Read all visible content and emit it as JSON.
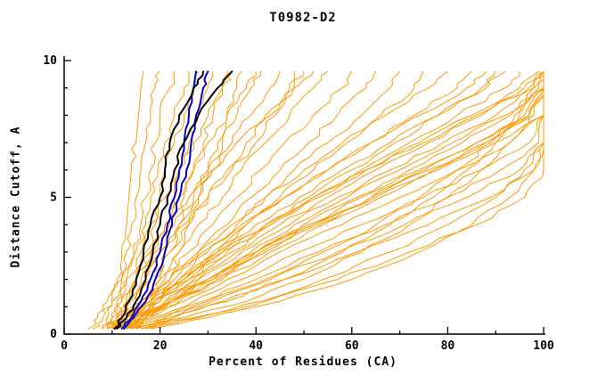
{
  "chart_data": {
    "type": "line",
    "title": "T0982-D2",
    "xlabel": "Percent of Residues (CA)",
    "ylabel": "Distance Cutoff, A",
    "xlim": [
      0,
      100
    ],
    "ylim": [
      0,
      10
    ],
    "x_ticks": [
      0,
      20,
      40,
      60,
      80,
      100
    ],
    "x_minor_step": 10,
    "y_ticks": [
      0,
      5,
      10
    ],
    "y_minor_step": 1,
    "grid": false,
    "legend": "none",
    "colors": {
      "orange": "#ff9900",
      "black": "#000000",
      "blue": "#0000cc"
    },
    "y_levels": [
      0.2,
      0.6,
      1.2,
      2,
      3,
      4,
      5,
      6,
      7,
      8,
      9,
      9.6
    ],
    "series_groups": [
      {
        "name": "model-curves",
        "color_key": "orange",
        "width": 1,
        "curves": [
          [
            8,
            9,
            10,
            11,
            12,
            13,
            13.5,
            14,
            15,
            15.5,
            16,
            16.5
          ],
          [
            9,
            10,
            11,
            12,
            13,
            14,
            15,
            16,
            17,
            18,
            19,
            20
          ],
          [
            10,
            11,
            12,
            13,
            14.5,
            16,
            17,
            18,
            19,
            20,
            22,
            23
          ],
          [
            11,
            12,
            13.5,
            15,
            16,
            17,
            18,
            19.5,
            21,
            23,
            25,
            26
          ],
          [
            12,
            13,
            15,
            17,
            18,
            19,
            20,
            21,
            23,
            25,
            27,
            28
          ],
          [
            13,
            15,
            17,
            19,
            21,
            22,
            23,
            24,
            26,
            28,
            30,
            31
          ],
          [
            14,
            16,
            18,
            20,
            22,
            24,
            25,
            27,
            29,
            31,
            33,
            34
          ],
          [
            15,
            17,
            20,
            22,
            24,
            26,
            28,
            30,
            32,
            34,
            36,
            37
          ],
          [
            9,
            11,
            13,
            15,
            18,
            21,
            24,
            27,
            30,
            34,
            38,
            40
          ],
          [
            10,
            12,
            14,
            17,
            20,
            24,
            28,
            31,
            35,
            39,
            43,
            45
          ],
          [
            10,
            12,
            15,
            18,
            22,
            26,
            30,
            34,
            38,
            43,
            48,
            50
          ],
          [
            11,
            13,
            16,
            20,
            24,
            28,
            33,
            37,
            42,
            47,
            52,
            55
          ],
          [
            11,
            14,
            17,
            21,
            26,
            31,
            36,
            41,
            46,
            52,
            58,
            60
          ],
          [
            12,
            14,
            18,
            23,
            28,
            34,
            39,
            45,
            51,
            57,
            63,
            65
          ],
          [
            12,
            15,
            19,
            24,
            30,
            36,
            42,
            48,
            55,
            62,
            68,
            70
          ],
          [
            13,
            16,
            20,
            26,
            32,
            38,
            45,
            52,
            59,
            66,
            73,
            75
          ],
          [
            10,
            13,
            17,
            22,
            28,
            35,
            42,
            50,
            58,
            67,
            76,
            80
          ],
          [
            11,
            14,
            18,
            24,
            31,
            38,
            46,
            55,
            64,
            73,
            82,
            85
          ],
          [
            11,
            14,
            19,
            25,
            32,
            40,
            49,
            58,
            68,
            78,
            88,
            90
          ],
          [
            12,
            15,
            20,
            27,
            35,
            43,
            52,
            62,
            72,
            82,
            92,
            95
          ],
          [
            12,
            16,
            21,
            28,
            36,
            45,
            55,
            65,
            76,
            87,
            97,
            100
          ],
          [
            13,
            17,
            22,
            30,
            39,
            48,
            59,
            70,
            81,
            92,
            100,
            100
          ],
          [
            13,
            17,
            23,
            31,
            40,
            51,
            62,
            74,
            86,
            97,
            100,
            100
          ],
          [
            14,
            18,
            24,
            33,
            43,
            54,
            66,
            78,
            90,
            100,
            100,
            100
          ],
          [
            12,
            16,
            22,
            30,
            40,
            52,
            64,
            76,
            88,
            97,
            100,
            100
          ],
          [
            13,
            18,
            25,
            34,
            45,
            58,
            70,
            82,
            93,
            100,
            100,
            100
          ],
          [
            14,
            19,
            27,
            37,
            49,
            62,
            75,
            87,
            97,
            100,
            100,
            100
          ],
          [
            15,
            21,
            29,
            40,
            53,
            67,
            80,
            91,
            99,
            100,
            100,
            100
          ],
          [
            15,
            22,
            31,
            43,
            57,
            71,
            84,
            95,
            100,
            100,
            100,
            100
          ],
          [
            16,
            23,
            33,
            46,
            61,
            76,
            89,
            98,
            100,
            100,
            100,
            100
          ],
          [
            15,
            25,
            38,
            50,
            62,
            72,
            80,
            87,
            93,
            97,
            100,
            100
          ],
          [
            14,
            22,
            34,
            46,
            58,
            68,
            77,
            84,
            90,
            95,
            99,
            100
          ],
          [
            16,
            27,
            41,
            54,
            68,
            80,
            90,
            96,
            100,
            100,
            100,
            100
          ],
          [
            13,
            20,
            30,
            42,
            54,
            65,
            74,
            82,
            89,
            94,
            98,
            100
          ],
          [
            10,
            13,
            18,
            25,
            33,
            42,
            51,
            60,
            69,
            78,
            87,
            92
          ],
          [
            9,
            12,
            16,
            22,
            29,
            37,
            46,
            55,
            64,
            74,
            84,
            88
          ],
          [
            8,
            10,
            12,
            15,
            19,
            23,
            27,
            30,
            33,
            36,
            39,
            41
          ],
          [
            9,
            11,
            13,
            16,
            20,
            25,
            30,
            35,
            40,
            44,
            47,
            48
          ],
          [
            5,
            7,
            9,
            12,
            15,
            18,
            21,
            24,
            27,
            30,
            33,
            35
          ],
          [
            6,
            8,
            10,
            13,
            17,
            21,
            26,
            31,
            36,
            42,
            48,
            52
          ],
          [
            11,
            14,
            19,
            26,
            34,
            43,
            53,
            63,
            74,
            85,
            95,
            99
          ],
          [
            12,
            15,
            21,
            28,
            37,
            47,
            57,
            68,
            79,
            90,
            98,
            100
          ],
          [
            10,
            13,
            18,
            25,
            33,
            42,
            52,
            63,
            75,
            86,
            96,
            100
          ],
          [
            13,
            16,
            22,
            30,
            40,
            50,
            61,
            72,
            83,
            93,
            100,
            100
          ],
          [
            14,
            17,
            23,
            32,
            42,
            53,
            65,
            77,
            88,
            98,
            100,
            100
          ],
          [
            12,
            16,
            22,
            31,
            41,
            52,
            64,
            75,
            86,
            96,
            100,
            100
          ],
          [
            18,
            30,
            45,
            60,
            74,
            85,
            93,
            98,
            100,
            100,
            100,
            100
          ],
          [
            17,
            28,
            42,
            57,
            72,
            86,
            96,
            100,
            100,
            100,
            100,
            100
          ]
        ]
      },
      {
        "name": "highlight-blue-curves",
        "color_key": "blue",
        "width": 2,
        "curves": [
          [
            12,
            14,
            16,
            18,
            20,
            21.5,
            23,
            24,
            25,
            26,
            27,
            27.5
          ],
          [
            12.5,
            14.5,
            17,
            19,
            21,
            22.5,
            24,
            25.5,
            26.5,
            27.5,
            29,
            30
          ]
        ]
      },
      {
        "name": "highlight-black-curves",
        "color_key": "black",
        "width": 2,
        "curves": [
          [
            10.5,
            12,
            13.5,
            15,
            16.5,
            18,
            20,
            21,
            22,
            24,
            27,
            29
          ],
          [
            11,
            13,
            15,
            17,
            18.5,
            20,
            21.5,
            23,
            25,
            28,
            32,
            35
          ]
        ]
      }
    ]
  }
}
